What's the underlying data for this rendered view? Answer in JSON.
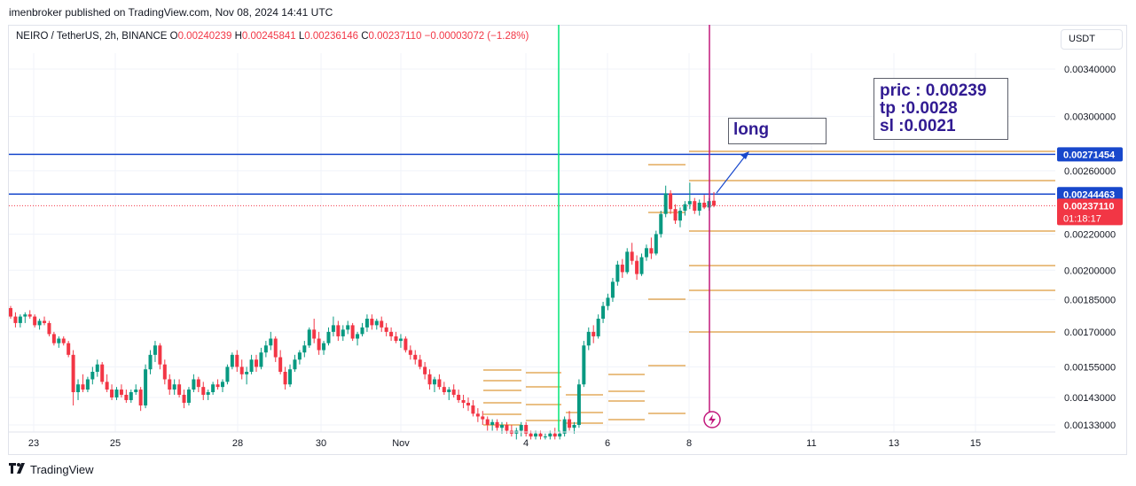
{
  "header": {
    "published": "imenbroker published on TradingView.com, Nov 08, 2024 14:41 UTC"
  },
  "symbol": {
    "name": "NEIRO / TetherUS, 2h, BINANCE",
    "o_label": "O",
    "o": "0.00240239",
    "h_label": "H",
    "h": "0.00245841",
    "l_label": "L",
    "l": "0.00236146",
    "c_label": "C",
    "c": "0.00237110",
    "change": "−0.00003072 (−1.28%)"
  },
  "toolbar": {
    "currency": "USDT"
  },
  "footer": {
    "brand": "TradingView",
    "logo": "tradingview-logo"
  },
  "annotations": {
    "note_lines": [
      "pric : 0.00239",
      "tp :0.0028",
      "sl :0.0021"
    ],
    "long_label": "long",
    "flash_icon": "lightning-icon"
  },
  "price_tags": {
    "tp": "0.00271454",
    "entry": "0.00244463",
    "last": "0.00237110",
    "countdown": "01:18:17"
  },
  "colors": {
    "up": "#089981",
    "down": "#f23645",
    "level_blue": "#1848cc",
    "fib": "#d4800b",
    "green_line": "#00e676",
    "magenta_line": "#c2187c",
    "text_box": "#311b92"
  },
  "chart_data": {
    "type": "candlestick",
    "y_scale": "log",
    "y_ticks": [
      "0.00340000",
      "0.00300000",
      "0.00260000",
      "0.00220000",
      "0.00200000",
      "0.00185000",
      "0.00170000",
      "0.00155000",
      "0.00143000",
      "0.00133000"
    ],
    "x_ticks": [
      "23",
      "25",
      "28",
      "30",
      "Nov",
      "4",
      "6",
      "8",
      "11",
      "13",
      "15"
    ],
    "horizontal_levels": [
      0.00271454,
      0.00244463
    ],
    "last_price": 0.0023711,
    "vertical_lines": [
      "Nov 5 (green)",
      "Nov 8 (magenta)"
    ],
    "candles": [
      [
        0.00181,
        0.00182,
        0.00176,
        0.00177
      ],
      [
        0.00177,
        0.00179,
        0.00172,
        0.00174
      ],
      [
        0.00174,
        0.00178,
        0.00172,
        0.00177
      ],
      [
        0.00177,
        0.00179,
        0.00174,
        0.00178
      ],
      [
        0.00178,
        0.0018,
        0.00176,
        0.00177
      ],
      [
        0.00177,
        0.00178,
        0.00172,
        0.00173
      ],
      [
        0.00173,
        0.00176,
        0.00171,
        0.00175
      ],
      [
        0.00175,
        0.00177,
        0.00173,
        0.00174
      ],
      [
        0.00174,
        0.00175,
        0.00168,
        0.00169
      ],
      [
        0.00169,
        0.0017,
        0.00164,
        0.00165
      ],
      [
        0.00165,
        0.00168,
        0.00163,
        0.00167
      ],
      [
        0.00167,
        0.00168,
        0.00164,
        0.00165
      ],
      [
        0.00165,
        0.00166,
        0.00159,
        0.0016
      ],
      [
        0.0016,
        0.00162,
        0.0014,
        0.00145
      ],
      [
        0.00145,
        0.0015,
        0.00142,
        0.00148
      ],
      [
        0.00148,
        0.00152,
        0.00145,
        0.00146
      ],
      [
        0.00146,
        0.00151,
        0.00145,
        0.0015
      ],
      [
        0.0015,
        0.00155,
        0.00148,
        0.00153
      ],
      [
        0.00153,
        0.00158,
        0.00151,
        0.00156
      ],
      [
        0.00156,
        0.00157,
        0.00148,
        0.00149
      ],
      [
        0.00149,
        0.00152,
        0.00145,
        0.00146
      ],
      [
        0.00146,
        0.00148,
        0.00142,
        0.00143
      ],
      [
        0.00143,
        0.00147,
        0.00142,
        0.00146
      ],
      [
        0.00146,
        0.00148,
        0.00143,
        0.00144
      ],
      [
        0.00144,
        0.00146,
        0.00141,
        0.00142
      ],
      [
        0.00142,
        0.00146,
        0.00141,
        0.00145
      ],
      [
        0.00145,
        0.00148,
        0.00144,
        0.00146
      ],
      [
        0.00146,
        0.00147,
        0.00138,
        0.0014
      ],
      [
        0.0014,
        0.00156,
        0.00139,
        0.00154
      ],
      [
        0.00154,
        0.00162,
        0.00152,
        0.0016
      ],
      [
        0.0016,
        0.00166,
        0.00157,
        0.00164
      ],
      [
        0.00164,
        0.00165,
        0.00154,
        0.00156
      ],
      [
        0.00156,
        0.00158,
        0.00148,
        0.0015
      ],
      [
        0.0015,
        0.00152,
        0.00144,
        0.00146
      ],
      [
        0.00146,
        0.0015,
        0.00144,
        0.00148
      ],
      [
        0.00148,
        0.0015,
        0.00143,
        0.00144
      ],
      [
        0.00144,
        0.00146,
        0.00139,
        0.00141
      ],
      [
        0.00141,
        0.00147,
        0.0014,
        0.00146
      ],
      [
        0.00146,
        0.00152,
        0.00145,
        0.0015
      ],
      [
        0.0015,
        0.00151,
        0.00145,
        0.00147
      ],
      [
        0.00147,
        0.00149,
        0.00142,
        0.00144
      ],
      [
        0.00144,
        0.00146,
        0.00142,
        0.00145
      ],
      [
        0.00145,
        0.00149,
        0.00144,
        0.00148
      ],
      [
        0.00148,
        0.0015,
        0.00146,
        0.00147
      ],
      [
        0.00147,
        0.0015,
        0.00145,
        0.00149
      ],
      [
        0.00149,
        0.00156,
        0.00148,
        0.00155
      ],
      [
        0.00155,
        0.00161,
        0.00154,
        0.0016
      ],
      [
        0.0016,
        0.00162,
        0.00153,
        0.00155
      ],
      [
        0.00155,
        0.00158,
        0.0015,
        0.00152
      ],
      [
        0.00152,
        0.00155,
        0.00148,
        0.00153
      ],
      [
        0.00153,
        0.0016,
        0.00152,
        0.00158
      ],
      [
        0.00158,
        0.0016,
        0.00153,
        0.00155
      ],
      [
        0.00155,
        0.00163,
        0.00154,
        0.00161
      ],
      [
        0.00161,
        0.00166,
        0.00159,
        0.00164
      ],
      [
        0.00164,
        0.0017,
        0.00162,
        0.00167
      ],
      [
        0.00167,
        0.00168,
        0.00157,
        0.00159
      ],
      [
        0.00159,
        0.00162,
        0.00152,
        0.00153
      ],
      [
        0.00153,
        0.00155,
        0.00146,
        0.00148
      ],
      [
        0.00148,
        0.00156,
        0.00147,
        0.00154
      ],
      [
        0.00154,
        0.0016,
        0.00153,
        0.00158
      ],
      [
        0.00158,
        0.00162,
        0.00156,
        0.00161
      ],
      [
        0.00161,
        0.00166,
        0.00159,
        0.00164
      ],
      [
        0.00164,
        0.00172,
        0.00163,
        0.00171
      ],
      [
        0.00171,
        0.00176,
        0.00165,
        0.00167
      ],
      [
        0.00167,
        0.0017,
        0.0016,
        0.00162
      ],
      [
        0.00162,
        0.00166,
        0.0016,
        0.00165
      ],
      [
        0.00165,
        0.00172,
        0.00164,
        0.0017
      ],
      [
        0.0017,
        0.00177,
        0.00168,
        0.00173
      ],
      [
        0.00173,
        0.00175,
        0.00166,
        0.00168
      ],
      [
        0.00168,
        0.00173,
        0.00166,
        0.00171
      ],
      [
        0.00171,
        0.00175,
        0.00169,
        0.00173
      ],
      [
        0.00173,
        0.00174,
        0.00166,
        0.00167
      ],
      [
        0.00167,
        0.0017,
        0.00164,
        0.00169
      ],
      [
        0.00169,
        0.00174,
        0.00168,
        0.00172
      ],
      [
        0.00172,
        0.00178,
        0.0017,
        0.00176
      ],
      [
        0.00176,
        0.00178,
        0.00171,
        0.00173
      ],
      [
        0.00173,
        0.00176,
        0.00171,
        0.00175
      ],
      [
        0.00175,
        0.00177,
        0.0017,
        0.00172
      ],
      [
        0.00172,
        0.00174,
        0.00168,
        0.0017
      ],
      [
        0.0017,
        0.00172,
        0.00166,
        0.00168
      ],
      [
        0.00168,
        0.0017,
        0.00165,
        0.00166
      ],
      [
        0.00166,
        0.00169,
        0.00163,
        0.00167
      ],
      [
        0.00167,
        0.00168,
        0.00161,
        0.00162
      ],
      [
        0.00162,
        0.00164,
        0.00158,
        0.0016
      ],
      [
        0.0016,
        0.00162,
        0.00156,
        0.00158
      ],
      [
        0.00158,
        0.0016,
        0.00154,
        0.00155
      ],
      [
        0.00155,
        0.00157,
        0.0015,
        0.00152
      ],
      [
        0.00152,
        0.00154,
        0.00146,
        0.00148
      ],
      [
        0.00148,
        0.00151,
        0.00145,
        0.0015
      ],
      [
        0.0015,
        0.00152,
        0.00146,
        0.00147
      ],
      [
        0.00147,
        0.00149,
        0.00144,
        0.00145
      ],
      [
        0.00145,
        0.00147,
        0.00142,
        0.00146
      ],
      [
        0.00146,
        0.00148,
        0.00143,
        0.00144
      ],
      [
        0.00144,
        0.00146,
        0.00141,
        0.00142
      ],
      [
        0.00142,
        0.00144,
        0.00139,
        0.00141
      ],
      [
        0.00141,
        0.00143,
        0.00138,
        0.0014
      ],
      [
        0.0014,
        0.00142,
        0.00136,
        0.00137
      ],
      [
        0.00137,
        0.00139,
        0.00134,
        0.00136
      ],
      [
        0.00136,
        0.00138,
        0.00133,
        0.00135
      ],
      [
        0.00135,
        0.00136,
        0.00131,
        0.00133
      ],
      [
        0.00133,
        0.00135,
        0.00131,
        0.00134
      ],
      [
        0.00134,
        0.00135,
        0.00131,
        0.00132
      ],
      [
        0.00132,
        0.00134,
        0.0013,
        0.00133
      ],
      [
        0.00133,
        0.00134,
        0.0013,
        0.00131
      ],
      [
        0.00131,
        0.00133,
        0.00129,
        0.0013
      ],
      [
        0.0013,
        0.00132,
        0.00128,
        0.00131
      ],
      [
        0.00131,
        0.00134,
        0.00129,
        0.00133
      ],
      [
        0.00133,
        0.00134,
        0.00129,
        0.0013
      ],
      [
        0.0013,
        0.00131,
        0.00128,
        0.00129
      ],
      [
        0.00129,
        0.00131,
        0.00128,
        0.0013
      ],
      [
        0.0013,
        0.00131,
        0.00128,
        0.00129
      ],
      [
        0.00129,
        0.0013,
        0.00128,
        0.00129
      ],
      [
        0.00129,
        0.00131,
        0.00128,
        0.0013
      ],
      [
        0.0013,
        0.00132,
        0.00128,
        0.00129
      ],
      [
        0.00129,
        0.00131,
        0.00128,
        0.0013
      ],
      [
        0.0013,
        0.00136,
        0.00129,
        0.00135
      ],
      [
        0.00135,
        0.00138,
        0.00131,
        0.00132
      ],
      [
        0.00132,
        0.00134,
        0.0013,
        0.00133
      ],
      [
        0.00133,
        0.0015,
        0.00132,
        0.00148
      ],
      [
        0.00148,
        0.00166,
        0.00147,
        0.00164
      ],
      [
        0.00164,
        0.00172,
        0.00162,
        0.0017
      ],
      [
        0.0017,
        0.00173,
        0.00165,
        0.00168
      ],
      [
        0.00168,
        0.00178,
        0.00167,
        0.00176
      ],
      [
        0.00176,
        0.00184,
        0.00174,
        0.00182
      ],
      [
        0.00182,
        0.00188,
        0.0018,
        0.00186
      ],
      [
        0.00186,
        0.00196,
        0.00184,
        0.00194
      ],
      [
        0.00194,
        0.00205,
        0.00192,
        0.00203
      ],
      [
        0.00203,
        0.00206,
        0.00196,
        0.00199
      ],
      [
        0.00199,
        0.00212,
        0.00198,
        0.0021
      ],
      [
        0.0021,
        0.00215,
        0.00203,
        0.00205
      ],
      [
        0.00205,
        0.00208,
        0.00195,
        0.00198
      ],
      [
        0.00198,
        0.00209,
        0.00197,
        0.00207
      ],
      [
        0.00207,
        0.00214,
        0.00205,
        0.00212
      ],
      [
        0.00212,
        0.00218,
        0.00206,
        0.00209
      ],
      [
        0.00209,
        0.00222,
        0.00208,
        0.0022
      ],
      [
        0.0022,
        0.00234,
        0.00218,
        0.00232
      ],
      [
        0.00232,
        0.0025,
        0.0023,
        0.00245
      ],
      [
        0.00245,
        0.00247,
        0.00232,
        0.00235
      ],
      [
        0.00235,
        0.00238,
        0.00226,
        0.00228
      ],
      [
        0.00228,
        0.00236,
        0.00224,
        0.00234
      ],
      [
        0.00234,
        0.0024,
        0.00231,
        0.00238
      ],
      [
        0.00238,
        0.00252,
        0.00235,
        0.0024
      ],
      [
        0.0024,
        0.00242,
        0.00232,
        0.00234
      ],
      [
        0.00234,
        0.00241,
        0.00231,
        0.00239
      ],
      [
        0.00239,
        0.00244,
        0.00235,
        0.00236
      ],
      [
        0.00236,
        0.00242,
        0.00234,
        0.0024
      ],
      [
        0.00240239,
        0.00245841,
        0.00236146,
        0.0023711
      ]
    ]
  }
}
